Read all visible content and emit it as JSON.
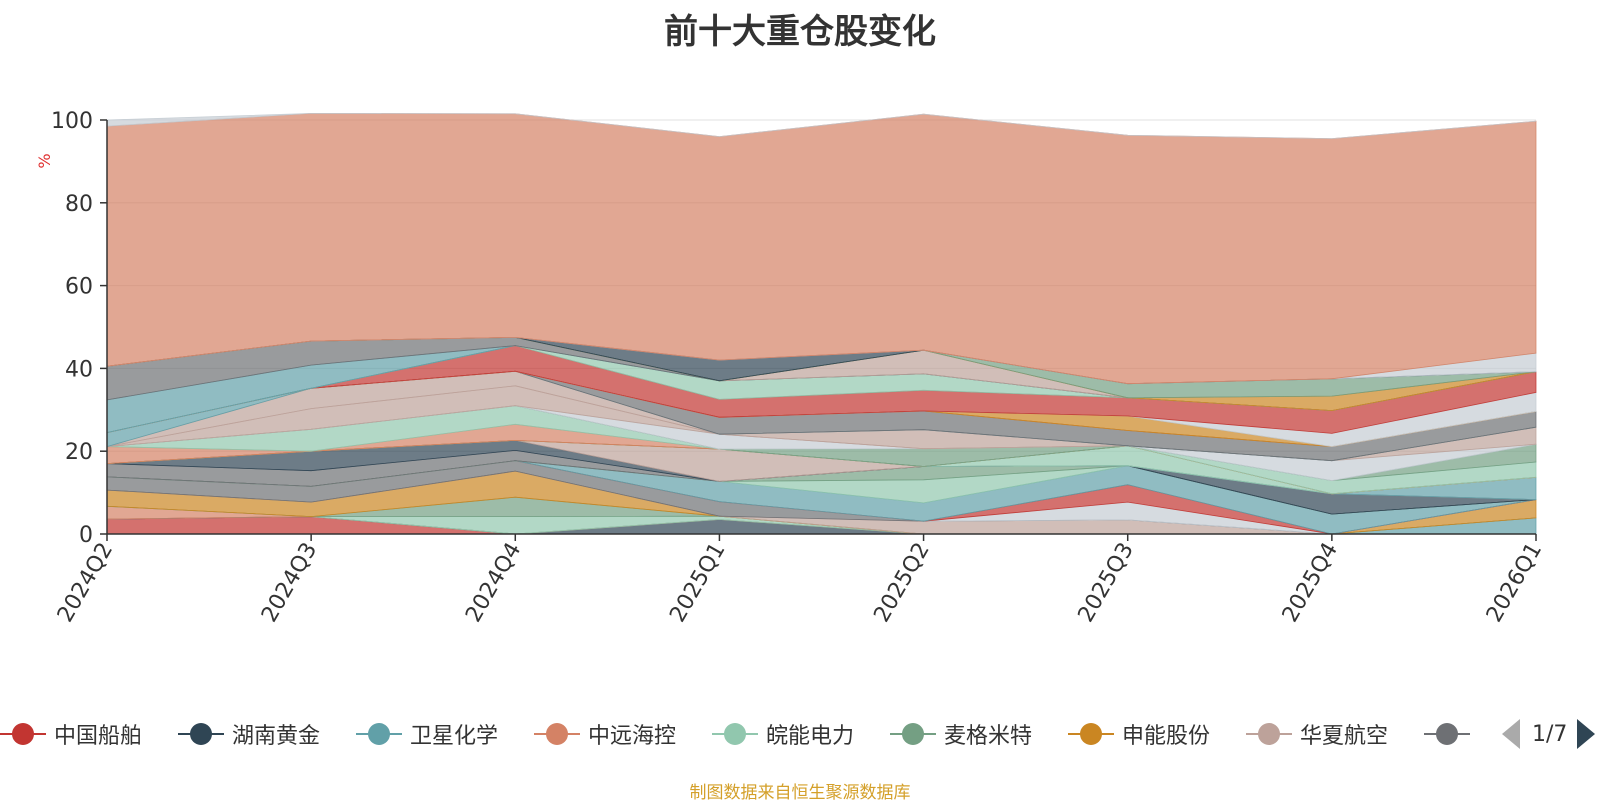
{
  "chart_data": {
    "type": "area",
    "stacked": true,
    "title": "前十大重仓股变化",
    "ylabel": "%",
    "ylim": [
      0,
      100
    ],
    "yticks": [
      "0",
      "20",
      "40",
      "60",
      "80",
      "100"
    ],
    "categories": [
      "2024Q2",
      "2024Q3",
      "2024Q4",
      "2025Q1",
      "2025Q2",
      "2025Q3",
      "2025Q4",
      "2026Q1"
    ],
    "grid": true,
    "legend_position": "bottom",
    "legend_page": "1/7",
    "series": [
      {
        "name": "中国船舶",
        "color": "#c23531",
        "values": [
          3.6,
          4.2,
          0,
          0,
          0,
          0,
          0,
          0
        ]
      },
      {
        "name": "湖南黄金",
        "color": "#2f4554",
        "values": [
          0,
          0,
          0,
          3.5,
          0,
          0,
          0,
          0
        ]
      },
      {
        "name": "卫星化学",
        "color": "#61a0a8",
        "values": [
          0,
          0,
          0,
          0,
          0,
          0,
          0,
          3.9
        ]
      },
      {
        "name": "中远海控",
        "color": "#d48265",
        "values": [
          3.1,
          0,
          0,
          0,
          0,
          0,
          0,
          0
        ]
      },
      {
        "name": "皖能电力",
        "color": "#91c7ae",
        "values": [
          0,
          0,
          4.2,
          0.8,
          0,
          0,
          0,
          0
        ]
      },
      {
        "name": "麦格米特",
        "color": "#749f83",
        "values": [
          0,
          0,
          4.7,
          0,
          0,
          0,
          0,
          0
        ]
      },
      {
        "name": "申能股份",
        "color": "#ca8622",
        "values": [
          3.9,
          3.5,
          6.3,
          0,
          0,
          0,
          0,
          4.4
        ]
      },
      {
        "name": "华夏航空",
        "color": "#bda29a",
        "values": [
          0,
          0,
          0,
          0,
          3.1,
          3.4,
          0,
          0
        ]
      },
      {
        "name": "",
        "color": "#6e7074",
        "values": [
          3.2,
          3.8,
          2.5,
          3.5,
          0,
          0,
          0,
          0
        ]
      },
      {
        "name": "",
        "color": "#c4ccd3",
        "values": [
          0,
          0,
          0,
          0,
          0,
          4.3,
          0,
          0
        ]
      },
      {
        "name": "",
        "color": "#c23531",
        "values": [
          0,
          0,
          0,
          0,
          0,
          4.2,
          0,
          0
        ]
      },
      {
        "name": "",
        "color": "#61a0a8",
        "values": [
          0,
          0,
          0,
          4.9,
          4.4,
          4.6,
          4.8,
          0
        ]
      },
      {
        "name": "",
        "color": "#91c7ae",
        "values": [
          0,
          0,
          0,
          0,
          5.6,
          0,
          0,
          0
        ]
      },
      {
        "name": "",
        "color": "#749f83",
        "values": [
          0,
          0,
          0,
          0,
          3.2,
          0,
          0,
          0
        ]
      },
      {
        "name": "",
        "color": "#6e7074",
        "values": [
          3.2,
          3.8,
          2.5,
          0,
          0,
          0,
          0,
          0
        ]
      },
      {
        "name": "",
        "color": "#2f4554",
        "values": [
          0,
          4.7,
          2.4,
          0,
          0,
          0,
          4.9,
          0
        ]
      },
      {
        "name": "",
        "color": "#bda29a",
        "values": [
          0,
          0,
          0,
          7.8,
          0,
          0,
          0,
          0
        ]
      },
      {
        "name": "",
        "color": "#61a0a8",
        "values": [
          0,
          0,
          0,
          0,
          0,
          0,
          0,
          5.4
        ]
      },
      {
        "name": "",
        "color": "#91c7ae",
        "values": [
          0,
          0,
          0,
          0,
          0,
          4.8,
          0,
          0
        ]
      },
      {
        "name": "",
        "color": "#ca8622",
        "values": [
          0,
          0,
          0,
          0,
          0,
          0,
          0,
          0
        ]
      },
      {
        "name": "",
        "color": "#d48265",
        "values": [
          4.1,
          0,
          3.9,
          0,
          0,
          0,
          0,
          0
        ]
      },
      {
        "name": "",
        "color": "#91c7ae",
        "values": [
          0,
          5.3,
          4.5,
          0,
          0,
          0,
          3.2,
          3.7
        ]
      },
      {
        "name": "",
        "color": "#749f83",
        "values": [
          0,
          0,
          0,
          0,
          4.3,
          0,
          0,
          4.3
        ]
      },
      {
        "name": "",
        "color": "#c4ccd3",
        "values": [
          0,
          0,
          0,
          3.6,
          0,
          0,
          4.8,
          0
        ]
      },
      {
        "name": "",
        "color": "#bda29a",
        "values": [
          0,
          5.0,
          4.8,
          0,
          0,
          0,
          0,
          4.1
        ]
      },
      {
        "name": "",
        "color": "#bda29a",
        "values": [
          0,
          4.9,
          3.5,
          0,
          4.6,
          0,
          0,
          0
        ]
      },
      {
        "name": "",
        "color": "#61a0a8",
        "values": [
          3.4,
          0,
          0,
          0,
          0,
          0,
          0,
          0
        ]
      },
      {
        "name": "",
        "color": "#6e7074",
        "values": [
          0,
          0,
          0,
          4.1,
          4.5,
          3.7,
          3.4,
          3.8
        ]
      },
      {
        "name": "",
        "color": "#d48265",
        "values": [
          0,
          0,
          0,
          0,
          0,
          0,
          0,
          0
        ]
      },
      {
        "name": "",
        "color": "#ca8622",
        "values": [
          0,
          0,
          0,
          0,
          0,
          3.5,
          0,
          0
        ]
      },
      {
        "name": "",
        "color": "#c4ccd3",
        "values": [
          0,
          0,
          0,
          0,
          0,
          0,
          3.2,
          4.6
        ]
      },
      {
        "name": "",
        "color": "#c23531",
        "values": [
          0,
          0,
          6.2,
          4.3,
          5.0,
          4.4,
          5.5,
          5.0
        ]
      },
      {
        "name": "",
        "color": "#91c7ae",
        "values": [
          0,
          0,
          0,
          4.5,
          4.0,
          0,
          0,
          0
        ]
      },
      {
        "name": "",
        "color": "#61a0a8",
        "values": [
          7.9,
          5.6,
          0,
          0,
          0,
          0,
          0,
          0
        ]
      },
      {
        "name": "",
        "color": "#6e7074",
        "values": [
          8.1,
          5.8,
          2.0,
          0,
          0,
          0,
          0,
          0
        ]
      },
      {
        "name": "",
        "color": "#bda29a",
        "values": [
          0,
          0,
          0,
          0,
          5.7,
          0,
          0,
          0
        ]
      },
      {
        "name": "",
        "color": "#ca8622",
        "values": [
          0,
          0,
          0,
          0,
          0,
          0,
          3.5,
          0
        ]
      },
      {
        "name": "",
        "color": "#749f83",
        "values": [
          0,
          0,
          0,
          0,
          0,
          3.4,
          4.2,
          0
        ]
      },
      {
        "name": "",
        "color": "#2f4554",
        "values": [
          0,
          0,
          0,
          5.0,
          0,
          0,
          0,
          0
        ]
      },
      {
        "name": "",
        "color": "#c4ccd3",
        "values": [
          0,
          0,
          0,
          0,
          0,
          0,
          0,
          4.5
        ]
      },
      {
        "name": "",
        "color": "#d48265",
        "values": [
          58.0,
          55.0,
          54.0,
          54.0,
          57.0,
          60.0,
          58.0,
          56.0
        ]
      },
      {
        "name": "",
        "color": "#c4ccd3",
        "values": [
          1.5,
          0,
          0,
          0,
          0,
          0,
          0,
          0
        ]
      }
    ]
  },
  "legend_items": [
    {
      "label": "中国船舶",
      "color": "#c23531"
    },
    {
      "label": "湖南黄金",
      "color": "#2f4554"
    },
    {
      "label": "卫星化学",
      "color": "#61a0a8"
    },
    {
      "label": "中远海控",
      "color": "#d48265"
    },
    {
      "label": "皖能电力",
      "color": "#91c7ae"
    },
    {
      "label": "麦格米特",
      "color": "#749f83"
    },
    {
      "label": "申能股份",
      "color": "#ca8622"
    },
    {
      "label": "华夏航空",
      "color": "#bda29a"
    },
    {
      "label": "",
      "color": "#6e7074"
    }
  ],
  "legend_pager": {
    "text": "1/7",
    "prev_icon": "triangle-left",
    "next_icon": "triangle-right"
  },
  "source_note": "制图数据来自恒生聚源数据库"
}
